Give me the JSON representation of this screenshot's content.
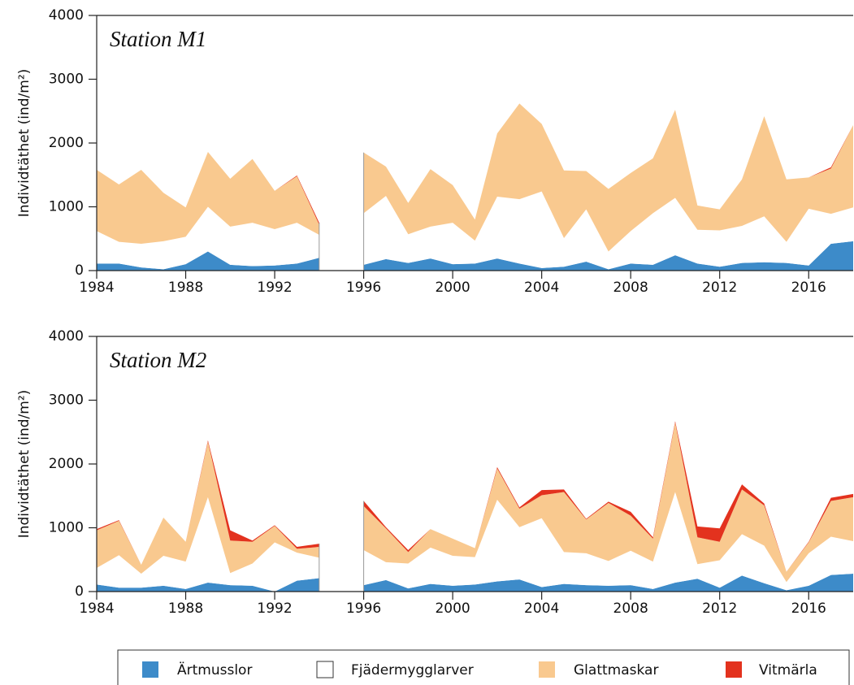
{
  "chart_data": [
    {
      "type": "stacked-area",
      "title": "Station M1",
      "y_label": "Individtäthet (ind/m²)",
      "x": [
        1984,
        1985,
        1986,
        1987,
        1988,
        1989,
        1990,
        1991,
        1992,
        1993,
        1994,
        1995,
        1996,
        1997,
        1998,
        1999,
        2000,
        2001,
        2002,
        2003,
        2004,
        2005,
        2006,
        2007,
        2008,
        2009,
        2010,
        2011,
        2012,
        2013,
        2014,
        2015,
        2016,
        2017,
        2018
      ],
      "xlim": [
        1984,
        2018
      ],
      "xticks": [
        1984,
        1988,
        1992,
        1996,
        2000,
        2004,
        2008,
        2012,
        2016
      ],
      "ylim": [
        0,
        4000
      ],
      "yticks": [
        0,
        1000,
        2000,
        3000,
        4000
      ],
      "series": [
        {
          "name": "Ärtmusslor",
          "color": "#3d8bc9",
          "values": [
            110,
            110,
            50,
            20,
            100,
            300,
            90,
            70,
            80,
            110,
            200,
            null,
            90,
            180,
            120,
            190,
            100,
            110,
            190,
            110,
            40,
            60,
            140,
            20,
            110,
            90,
            240,
            110,
            60,
            120,
            130,
            120,
            80,
            420,
            460
          ]
        },
        {
          "name": "Fjädermygglarver",
          "color": "#ffffff",
          "values": [
            510,
            340,
            370,
            440,
            430,
            700,
            600,
            680,
            570,
            640,
            360,
            null,
            810,
            990,
            450,
            500,
            650,
            360,
            970,
            1010,
            1200,
            450,
            820,
            280,
            510,
            810,
            900,
            530,
            570,
            580,
            720,
            330,
            890,
            470,
            530
          ]
        },
        {
          "name": "Glattmaskar",
          "color": "#f9c98f",
          "values": [
            960,
            900,
            1160,
            760,
            460,
            860,
            750,
            1000,
            600,
            730,
            160,
            null,
            950,
            460,
            490,
            900,
            590,
            330,
            990,
            1500,
            1060,
            1060,
            600,
            980,
            910,
            860,
            1380,
            380,
            330,
            730,
            1570,
            980,
            490,
            710,
            1290
          ]
        },
        {
          "name": "Vitmärla",
          "color": "#e3321e",
          "values": [
            0,
            0,
            0,
            0,
            0,
            0,
            0,
            0,
            0,
            10,
            30,
            null,
            0,
            0,
            0,
            0,
            0,
            0,
            0,
            0,
            0,
            0,
            0,
            0,
            0,
            0,
            0,
            0,
            0,
            0,
            0,
            0,
            0,
            20,
            0
          ]
        }
      ]
    },
    {
      "type": "stacked-area",
      "title": "Station M2",
      "y_label": "Individtäthet (ind/m²)",
      "x": [
        1984,
        1985,
        1986,
        1987,
        1988,
        1989,
        1990,
        1991,
        1992,
        1993,
        1994,
        1995,
        1996,
        1997,
        1998,
        1999,
        2000,
        2001,
        2002,
        2003,
        2004,
        2005,
        2006,
        2007,
        2008,
        2009,
        2010,
        2011,
        2012,
        2013,
        2014,
        2015,
        2016,
        2017,
        2018
      ],
      "xlim": [
        1984,
        2018
      ],
      "xticks": [
        1984,
        1988,
        1992,
        1996,
        2000,
        2004,
        2008,
        2012,
        2016
      ],
      "ylim": [
        0,
        4000
      ],
      "yticks": [
        0,
        1000,
        2000,
        3000,
        4000
      ],
      "series": [
        {
          "name": "Ärtmusslor",
          "color": "#3d8bc9",
          "values": [
            110,
            60,
            60,
            90,
            40,
            140,
            100,
            90,
            0,
            170,
            210,
            null,
            100,
            180,
            50,
            120,
            90,
            110,
            160,
            190,
            70,
            120,
            100,
            90,
            100,
            40,
            140,
            200,
            60,
            250,
            130,
            20,
            90,
            260,
            280
          ]
        },
        {
          "name": "Fjädermygglarver",
          "color": "#ffffff",
          "values": [
            260,
            510,
            220,
            470,
            430,
            1340,
            190,
            350,
            770,
            440,
            320,
            null,
            550,
            280,
            390,
            570,
            470,
            430,
            1280,
            820,
            1080,
            500,
            500,
            390,
            540,
            430,
            1420,
            230,
            430,
            650,
            590,
            130,
            510,
            600,
            510
          ]
        },
        {
          "name": "Glattmaskar",
          "color": "#f9c98f",
          "values": [
            590,
            540,
            140,
            600,
            310,
            870,
            510,
            340,
            260,
            60,
            170,
            null,
            690,
            530,
            180,
            290,
            270,
            140,
            490,
            290,
            360,
            940,
            530,
            910,
            550,
            360,
            1090,
            420,
            290,
            700,
            630,
            160,
            170,
            560,
            690
          ]
        },
        {
          "name": "Vitmärla",
          "color": "#e3321e",
          "values": [
            20,
            10,
            0,
            0,
            0,
            20,
            160,
            20,
            10,
            30,
            50,
            null,
            80,
            20,
            30,
            0,
            0,
            0,
            20,
            20,
            80,
            40,
            10,
            20,
            60,
            20,
            20,
            170,
            210,
            80,
            30,
            0,
            10,
            50,
            50
          ]
        }
      ]
    }
  ]
}
